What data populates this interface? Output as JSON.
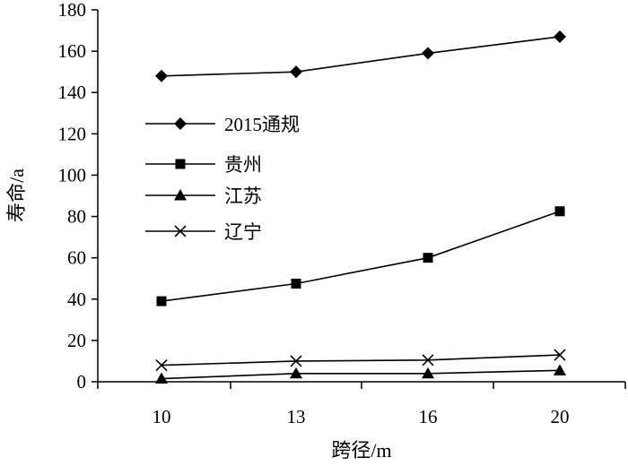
{
  "chart_data": {
    "type": "line",
    "title": "",
    "xlabel": "跨径/m",
    "ylabel": "寿命/a",
    "categories": [
      "10",
      "13",
      "16",
      "20"
    ],
    "ylim": [
      0,
      180
    ],
    "yticks": [
      "0",
      "20",
      "40",
      "60",
      "80",
      "100",
      "120",
      "140",
      "160",
      "180"
    ],
    "grid": false,
    "legend_position": "center-left",
    "series": [
      {
        "name": "2015通规",
        "marker": "diamond",
        "values": [
          148,
          150,
          159,
          167
        ]
      },
      {
        "name": "贵州",
        "marker": "square",
        "values": [
          39,
          47.5,
          60,
          82.5
        ]
      },
      {
        "name": "江苏",
        "marker": "triangle",
        "values": [
          1.5,
          4,
          4,
          5.5
        ]
      },
      {
        "name": "辽宁",
        "marker": "x",
        "values": [
          8,
          10,
          10.5,
          13
        ]
      }
    ]
  }
}
